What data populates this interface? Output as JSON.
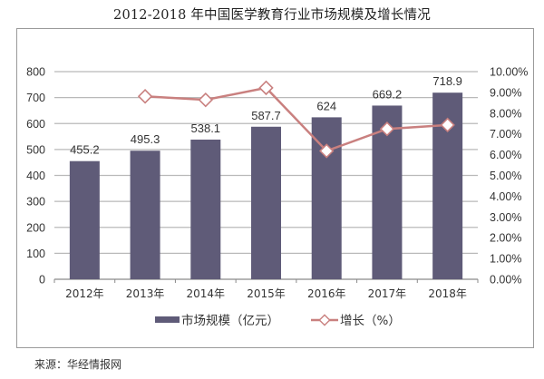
{
  "title": "2012-2018 年中国医学教育行业市场规模及增长情况",
  "source": "来源：华经情报网",
  "legend": {
    "bar_label": "市场规模（亿元）",
    "line_label": "增长（%）"
  },
  "colors": {
    "bar": "#5f5b78",
    "line": "#c9807f",
    "grid": "#b9b9b9",
    "frame": "#9a9a9a"
  },
  "chart_data": {
    "type": "bar+line",
    "title": "2012-2018 年中国医学教育行业市场规模及增长情况",
    "categories": [
      "2012年",
      "2013年",
      "2014年",
      "2015年",
      "2016年",
      "2017年",
      "2018年"
    ],
    "series": [
      {
        "name": "市场规模（亿元）",
        "type": "bar",
        "axis": "left",
        "values": [
          455.2,
          495.3,
          538.1,
          587.7,
          624,
          669.2,
          718.9
        ],
        "labels": [
          "455.2",
          "495.3",
          "538.1",
          "587.7",
          "624",
          "669.2",
          "718.9"
        ]
      },
      {
        "name": "增长（%）",
        "type": "line",
        "axis": "right",
        "values": [
          null,
          8.81,
          8.64,
          9.22,
          6.18,
          7.24,
          7.43
        ]
      }
    ],
    "y_left": {
      "min": 0,
      "max": 800,
      "step": 100,
      "ticks": [
        "0",
        "100",
        "200",
        "300",
        "400",
        "500",
        "600",
        "700",
        "800"
      ]
    },
    "y_right": {
      "min": 0,
      "max": 10,
      "step": 1,
      "ticks": [
        "0.00%",
        "1.00%",
        "2.00%",
        "3.00%",
        "4.00%",
        "5.00%",
        "6.00%",
        "7.00%",
        "8.00%",
        "9.00%",
        "10.00%"
      ]
    },
    "xlabel": "",
    "ylabel": "",
    "grid": true,
    "legend_position": "bottom"
  }
}
